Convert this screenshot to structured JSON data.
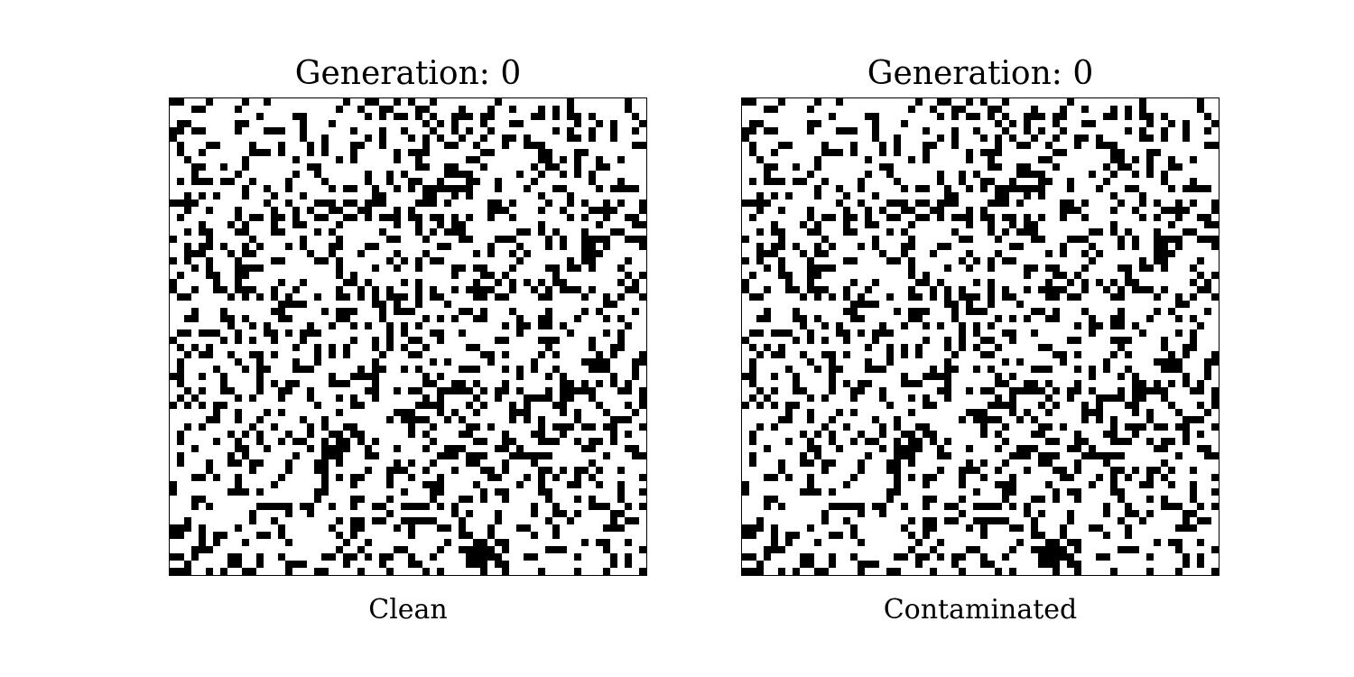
{
  "figure": {
    "panels": [
      {
        "title": "Generation: 0",
        "caption": "Clean"
      },
      {
        "title": "Generation: 0",
        "caption": "Contaminated"
      }
    ],
    "grid": {
      "cells_per_side": 66,
      "alive_color": "#000000",
      "dead_color": "#ffffff",
      "alive_fraction": 0.3,
      "seed": 12345
    }
  }
}
